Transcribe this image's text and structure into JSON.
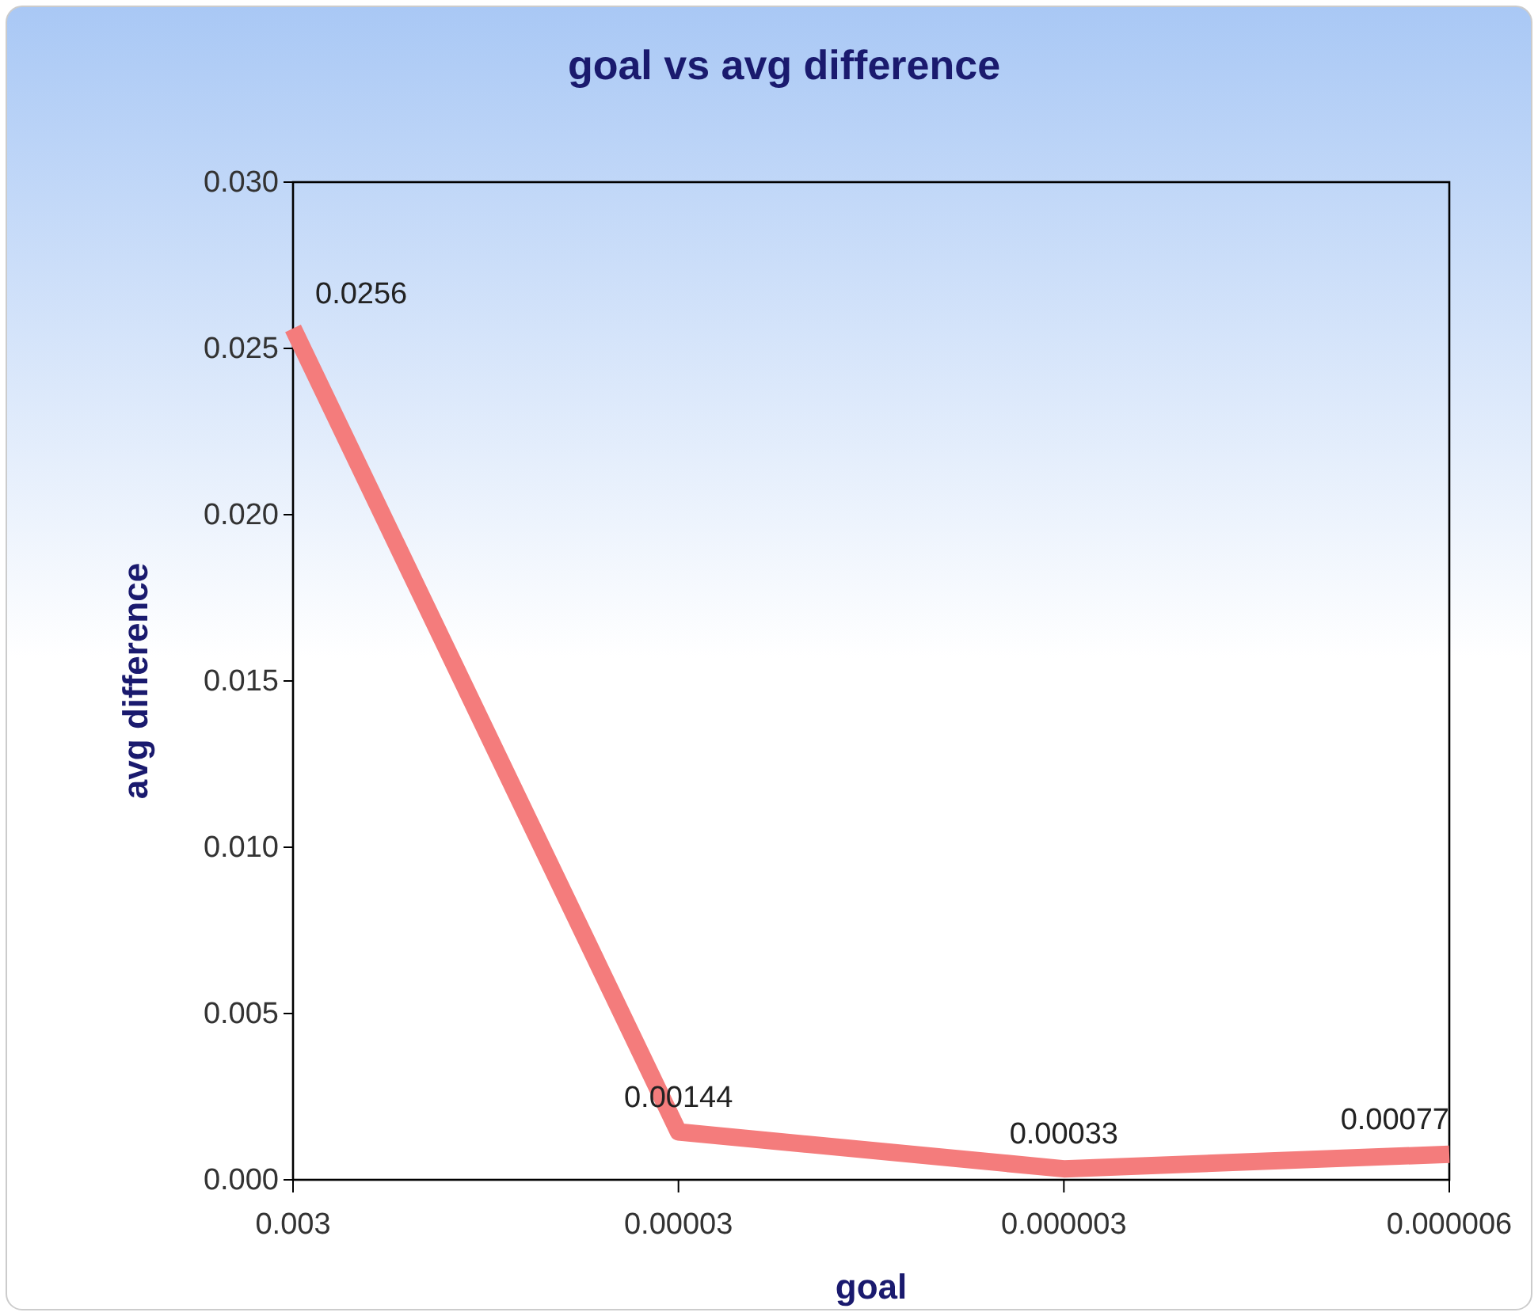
{
  "chart_data": {
    "type": "line",
    "title": "goal vs avg difference",
    "xlabel": "goal",
    "ylabel": "avg difference",
    "categories": [
      "0.003",
      "0.00003",
      "0.000003",
      "0.000006"
    ],
    "series": [
      {
        "color": "#f47c7c",
        "values": [
          0.0256,
          0.00144,
          0.00033,
          0.00077
        ]
      }
    ],
    "ylim": [
      0,
      0.03
    ],
    "yticks": [
      {
        "value": 0,
        "label": "0.000"
      },
      {
        "value": 0.005,
        "label": "0.005"
      },
      {
        "value": 0.01,
        "label": "0.010"
      },
      {
        "value": 0.015,
        "label": "0.015"
      },
      {
        "value": 0.02,
        "label": "0.020"
      },
      {
        "value": 0.025,
        "label": "0.025"
      },
      {
        "value": 0.03,
        "label": "0.030"
      }
    ],
    "data_labels": true,
    "grid": false,
    "legend": false,
    "marker": "none",
    "line_style": "solid"
  }
}
